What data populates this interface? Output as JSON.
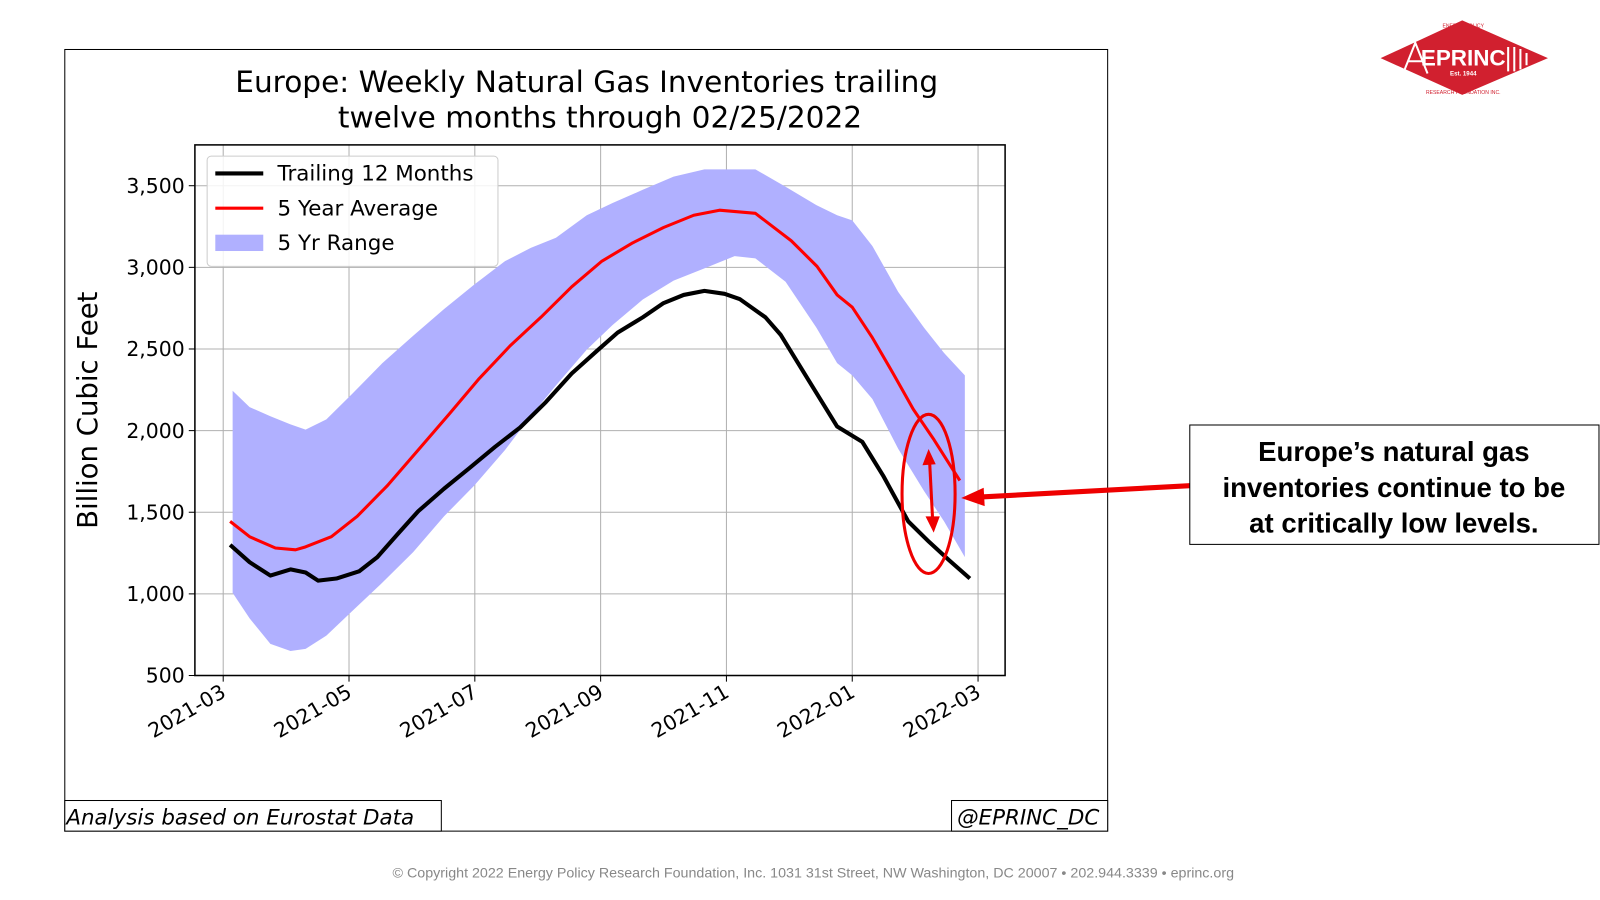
{
  "chart_data": {
    "type": "line",
    "title": [
      "Europe: Weekly Natural Gas Inventories trailing",
      "twelve months through 02/25/2022"
    ],
    "ylabel": "Billion Cubic Feet",
    "xlim": [
      -0.45,
      12.43
    ],
    "xticks": [
      {
        "value": 0,
        "label": "2021-03"
      },
      {
        "value": 2,
        "label": "2021-05"
      },
      {
        "value": 4,
        "label": "2021-07"
      },
      {
        "value": 6,
        "label": "2021-09"
      },
      {
        "value": 8,
        "label": "2021-11"
      },
      {
        "value": 10,
        "label": "2022-01"
      },
      {
        "value": 12,
        "label": "2022-03"
      }
    ],
    "ylim": [
      500,
      3750
    ],
    "yticks": [
      500,
      {
        "value": 1000,
        "label": "1,000"
      },
      {
        "value": 1500,
        "label": "1,500"
      },
      {
        "value": 2000,
        "label": "2,000"
      },
      {
        "value": 2500,
        "label": "2,500"
      },
      {
        "value": 3000,
        "label": "3,000"
      },
      {
        "value": 3500,
        "label": "3,500"
      }
    ],
    "grid": true,
    "legend": "upper left",
    "range": {
      "name": "5 Yr Range",
      "color": "#b0b0ff",
      "x": [
        0.15,
        0.42,
        0.75,
        1.07,
        1.31,
        1.64,
        2.05,
        2.53,
        3.02,
        3.51,
        3.99,
        4.48,
        4.89,
        5.29,
        5.78,
        6.19,
        6.67,
        7.16,
        7.65,
        8.13,
        8.46,
        8.94,
        9.43,
        9.76,
        10.0,
        10.32,
        10.73,
        11.14,
        11.46,
        11.79
      ],
      "high": [
        2244,
        2144,
        2088,
        2038,
        2006,
        2069,
        2225,
        2413,
        2581,
        2744,
        2894,
        3038,
        3119,
        3181,
        3319,
        3394,
        3475,
        3556,
        3600,
        3600,
        3600,
        3494,
        3381,
        3319,
        3288,
        3131,
        2850,
        2631,
        2475,
        2338
      ],
      "low": [
        1006,
        850,
        694,
        650,
        663,
        744,
        894,
        1069,
        1256,
        1475,
        1663,
        1881,
        2090,
        2277,
        2496,
        2647,
        2803,
        2919,
        2994,
        3069,
        3055,
        2912,
        2631,
        2413,
        2338,
        2194,
        1889,
        1631,
        1444,
        1225
      ]
    },
    "series": [
      {
        "name": "Trailing 12 Months",
        "color": "#000000",
        "x": [
          0.11,
          0.42,
          0.75,
          1.07,
          1.31,
          1.51,
          1.8,
          2.16,
          2.45,
          2.78,
          3.1,
          3.51,
          3.91,
          4.32,
          4.72,
          5.13,
          5.54,
          5.94,
          6.27,
          6.67,
          7.0,
          7.32,
          7.65,
          7.97,
          8.21,
          8.62,
          8.86,
          9.27,
          9.51,
          9.76,
          10.16,
          10.49,
          10.89,
          11.22,
          11.54,
          11.87
        ],
        "values": [
          1300,
          1194,
          1112,
          1150,
          1131,
          1081,
          1094,
          1138,
          1225,
          1369,
          1506,
          1644,
          1769,
          1900,
          2019,
          2175,
          2350,
          2488,
          2600,
          2694,
          2781,
          2831,
          2856,
          2838,
          2806,
          2694,
          2588,
          2331,
          2181,
          2025,
          1931,
          1725,
          1444,
          1319,
          1206,
          1094
        ]
      },
      {
        "name": "5 Year Average",
        "color": "#ff0000",
        "x": [
          0.11,
          0.42,
          0.83,
          1.15,
          1.31,
          1.72,
          2.13,
          2.61,
          3.1,
          3.59,
          4.07,
          4.56,
          5.05,
          5.54,
          6.02,
          6.51,
          7.0,
          7.48,
          7.89,
          8.46,
          9.03,
          9.44,
          9.76,
          10.0,
          10.32,
          10.65,
          10.97,
          11.3,
          11.71
        ],
        "values": [
          1444,
          1350,
          1281,
          1270,
          1288,
          1350,
          1475,
          1663,
          1881,
          2100,
          2319,
          2519,
          2694,
          2881,
          3038,
          3150,
          3244,
          3319,
          3350,
          3331,
          3163,
          3006,
          2831,
          2756,
          2569,
          2350,
          2131,
          1944,
          1694
        ]
      }
    ]
  },
  "source": "Analysis based on Eurostat Data",
  "handle": "@EPRINC_DC",
  "callout": [
    "Europe’s natural gas",
    "inventories continue to be",
    "at critically low levels."
  ],
  "footer": "© Copyright 2022 Energy Policy Research Foundation, Inc. 1031 31st Street, NW Washington, DC 20007 • 202.944.3339 • eprinc.org",
  "logo": {
    "name": "EPRINC",
    "est": "Est. 1944",
    "top": "ENERGY POLICY",
    "bottom": "RESEARCH FOUNDATION INC."
  }
}
